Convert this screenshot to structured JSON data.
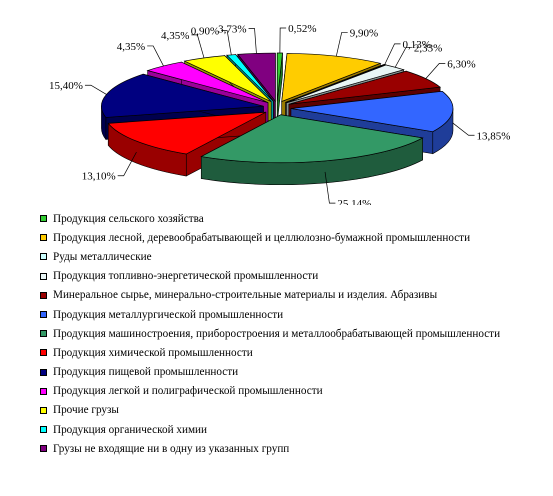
{
  "chart_data": {
    "type": "pie",
    "style": "3d-exploded",
    "value_format": "percent-comma",
    "start_angle_deg": -90,
    "direction": "clockwise",
    "slices": [
      {
        "label": "Продукция сельского хозяйства",
        "value": 0.52,
        "value_label": "0,52%",
        "color": "#33cc33",
        "dark": "#1e7a1e"
      },
      {
        "label": "Продукция лесной, деревообрабатывающей и целлюлозно-бумажной промышленности",
        "value": 9.9,
        "value_label": "9,90%",
        "color": "#ffcc00",
        "dark": "#997a00"
      },
      {
        "label": "Руды металлические",
        "value": 0.13,
        "value_label": "0,13%",
        "color": "#ccffff",
        "dark": "#7a9999"
      },
      {
        "label": "Продукция топливно-энергетической промышленности",
        "value": 2.33,
        "value_label": "2,33%",
        "color": "#e8f5f5",
        "dark": "#8b9393"
      },
      {
        "label": "Минеральное сырье, минерально-строительные материалы и изделия. Абразивы",
        "value": 6.3,
        "value_label": "6,30%",
        "color": "#990000",
        "dark": "#5c0000"
      },
      {
        "label": "Продукция металлургической промышленности",
        "value": 13.85,
        "value_label": "13,85%",
        "color": "#3366ff",
        "dark": "#1f3d99"
      },
      {
        "label": "Продукция машиностроения, приборостроения и металлообрабатывающей промышленности",
        "value": 25.14,
        "value_label": "25,14%",
        "color": "#339966",
        "dark": "#1f5c3d"
      },
      {
        "label": "Продукция химической промышленности",
        "value": 13.1,
        "value_label": "13,10%",
        "color": "#ff0000",
        "dark": "#990000"
      },
      {
        "label": "Продукция пищевой промышленности",
        "value": 15.4,
        "value_label": "15,40%",
        "color": "#000080",
        "dark": "#00004d"
      },
      {
        "label": "Продукция легкой и полиграфической промышленности",
        "value": 4.35,
        "value_label": "4,35%",
        "color": "#ff00ff",
        "dark": "#990099"
      },
      {
        "label": "Прочие грузы",
        "value": 4.35,
        "value_label": "4,35%",
        "color": "#ffff00",
        "dark": "#999900"
      },
      {
        "label": "Продукция органической химии",
        "value": 0.9,
        "value_label": "0,90%",
        "color": "#00ffff",
        "dark": "#009999"
      },
      {
        "label": "Грузы не входящие ни в одну из указанных групп",
        "value": 3.73,
        "value_label": "3,73%",
        "color": "#800080",
        "dark": "#4d004d"
      }
    ],
    "legend_position": "bottom"
  }
}
